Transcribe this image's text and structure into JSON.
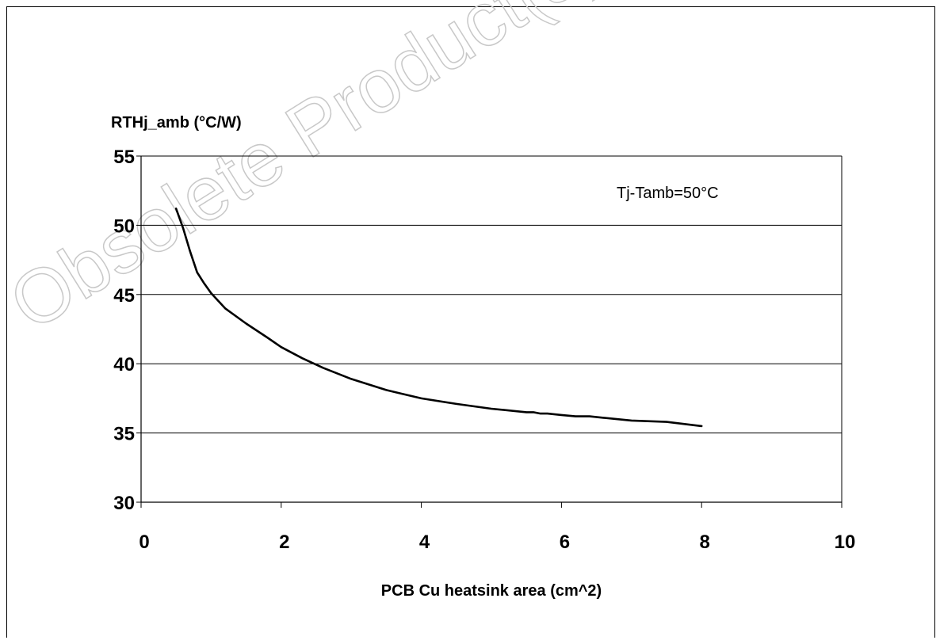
{
  "watermark": "Obsolete Product(s)",
  "chart_data": {
    "type": "line",
    "title": "",
    "xlabel": "PCB Cu heatsink area (cm^2)",
    "ylabel": "RTHj_amb (°C/W)",
    "xlim": [
      0,
      10
    ],
    "ylim": [
      30,
      55
    ],
    "xticks": [
      0,
      2,
      4,
      6,
      8,
      10
    ],
    "yticks": [
      30,
      35,
      40,
      45,
      50,
      55
    ],
    "grid": "horizontal",
    "annotation": "Tj-Tamb=50°C",
    "series": [
      {
        "x": [
          0.5,
          0.6,
          0.7,
          0.8,
          0.9,
          1.0,
          1.2,
          1.5,
          1.8,
          2.0,
          2.3,
          2.6,
          3.0,
          3.5,
          4.0,
          4.5,
          5.0,
          5.5,
          5.6,
          5.7,
          5.8,
          6.0,
          6.2,
          6.4,
          6.6,
          7.0,
          7.5,
          8.0
        ],
        "values": [
          51.2,
          49.8,
          48.1,
          46.6,
          45.8,
          45.1,
          44.0,
          42.9,
          41.9,
          41.2,
          40.4,
          39.7,
          38.9,
          38.1,
          37.5,
          37.1,
          36.75,
          36.5,
          36.5,
          36.4,
          36.4,
          36.3,
          36.2,
          36.2,
          36.1,
          35.9,
          35.8,
          35.5
        ]
      }
    ]
  }
}
